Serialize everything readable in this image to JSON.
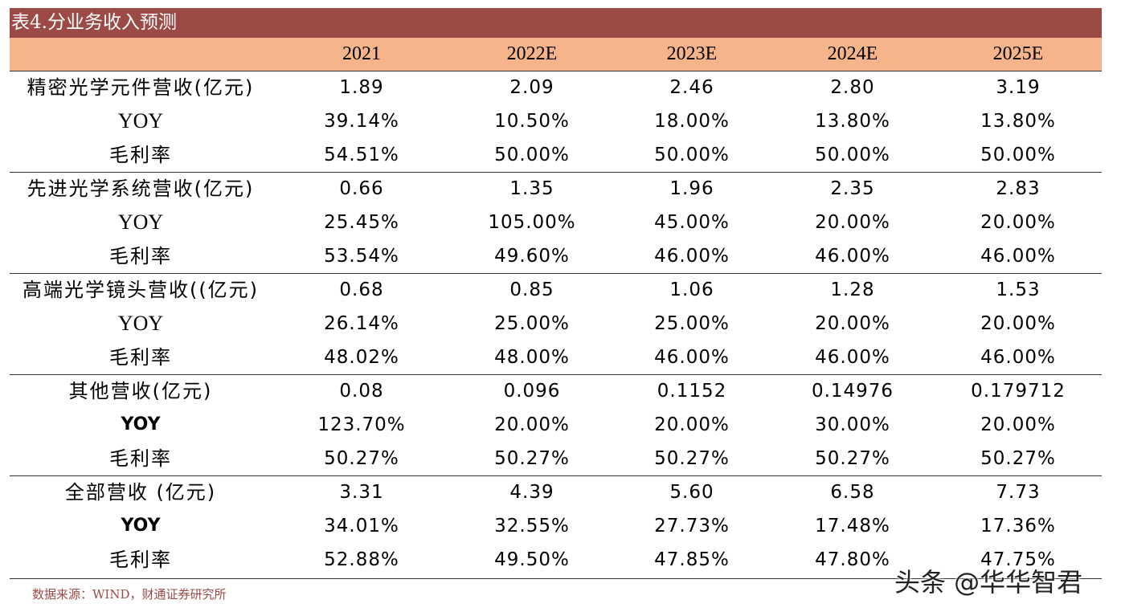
{
  "title": "表4.分业务收入预测",
  "header": [
    "2021",
    "2022E",
    "2023E",
    "2024E",
    "2025E"
  ],
  "groups": [
    {
      "rows": [
        {
          "label": "精密光学元件营收(亿元)",
          "values": [
            "1.89",
            "2.09",
            "2.46",
            "2.80",
            "3.19"
          ]
        },
        {
          "label": "YOY",
          "values": [
            "39.14%",
            "10.50%",
            "18.00%",
            "13.80%",
            "13.80%"
          ]
        },
        {
          "label": "毛利率",
          "values": [
            "54.51%",
            "50.00%",
            "50.00%",
            "50.00%",
            "50.00%"
          ]
        }
      ]
    },
    {
      "rows": [
        {
          "label": "先进光学系统营收(亿元)",
          "values": [
            "0.66",
            "1.35",
            "1.96",
            "2.35",
            "2.83"
          ]
        },
        {
          "label": "YOY",
          "values": [
            "25.45%",
            "105.00%",
            "45.00%",
            "20.00%",
            "20.00%"
          ]
        },
        {
          "label": "毛利率",
          "values": [
            "53.54%",
            "49.60%",
            "46.00%",
            "46.00%",
            "46.00%"
          ]
        }
      ]
    },
    {
      "rows": [
        {
          "label": "高端光学镜头营收((亿元)",
          "values": [
            "0.68",
            "0.85",
            "1.06",
            "1.28",
            "1.53"
          ]
        },
        {
          "label": "YOY",
          "values": [
            "26.14%",
            "25.00%",
            "25.00%",
            "20.00%",
            "20.00%"
          ]
        },
        {
          "label": "毛利率",
          "values": [
            "48.02%",
            "48.00%",
            "46.00%",
            "46.00%",
            "46.00%"
          ]
        }
      ]
    },
    {
      "rows": [
        {
          "label": "其他营收(亿元)",
          "values": [
            "0.08",
            "0.096",
            "0.1152",
            "0.14976",
            "0.179712"
          ]
        },
        {
          "label": "YOY",
          "values": [
            "123.70%",
            "20.00%",
            "20.00%",
            "30.00%",
            "20.00%"
          ]
        },
        {
          "label": "毛利率",
          "values": [
            "50.27%",
            "50.27%",
            "50.27%",
            "50.27%",
            "50.27%"
          ]
        }
      ]
    },
    {
      "rows": [
        {
          "label": "全部营收 (亿元)",
          "values": [
            "3.31",
            "4.39",
            "5.60",
            "6.58",
            "7.73"
          ]
        },
        {
          "label": "YOY",
          "values": [
            "34.01%",
            "32.55%",
            "27.73%",
            "17.48%",
            "17.36%"
          ]
        },
        {
          "label": "毛利率",
          "values": [
            "52.88%",
            "49.50%",
            "47.85%",
            "47.80%",
            "47.75%"
          ]
        }
      ]
    }
  ],
  "source": "数据来源：WIND，财通证券研究所",
  "watermark": "头条 @华华智君",
  "colors": {
    "title_bg": "#9c4a45",
    "header_bg": "#f5b48a",
    "source_text": "#9c4a45"
  }
}
